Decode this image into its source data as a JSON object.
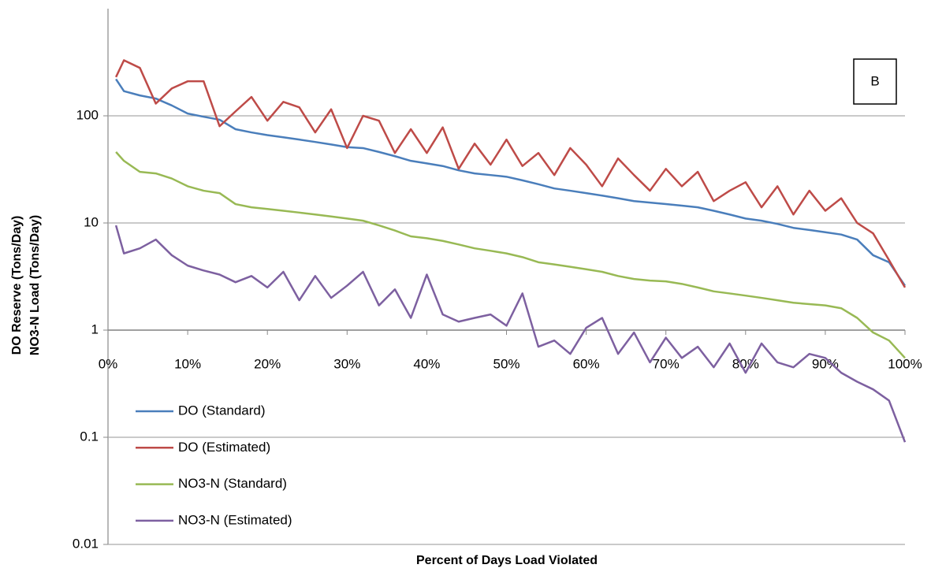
{
  "chart_data": {
    "type": "line",
    "annotation": "B",
    "xlabel": "Percent of Days Load Violated",
    "ylabel": [
      "DO Reserve (Tons/Day)",
      "NO3-N Load (Tons/Day)"
    ],
    "x": [
      1,
      2,
      4,
      6,
      8,
      10,
      12,
      14,
      16,
      18,
      20,
      22,
      24,
      26,
      28,
      30,
      32,
      34,
      36,
      38,
      40,
      42,
      44,
      46,
      48,
      50,
      52,
      54,
      56,
      58,
      60,
      62,
      64,
      66,
      68,
      70,
      72,
      74,
      76,
      78,
      80,
      82,
      84,
      86,
      88,
      90,
      92,
      94,
      96,
      98,
      100
    ],
    "series": [
      {
        "name": "DO (Standard)",
        "color": "#4a7ebb",
        "values": [
          220,
          170,
          155,
          145,
          125,
          105,
          98,
          92,
          75,
          70,
          66,
          63,
          60,
          57,
          54,
          51,
          50,
          46,
          42,
          38,
          36,
          34,
          31,
          29,
          28,
          27,
          25,
          23,
          21,
          20,
          19,
          18,
          17,
          16,
          15.5,
          15,
          14.5,
          14,
          13,
          12,
          11,
          10.5,
          9.8,
          9,
          8.6,
          8.2,
          7.8,
          7,
          5,
          4.3,
          2.6
        ]
      },
      {
        "name": "DO (Estimated)",
        "color": "#be4b48",
        "values": [
          230,
          330,
          280,
          130,
          180,
          210,
          210,
          80,
          110,
          150,
          90,
          135,
          120,
          70,
          115,
          50,
          100,
          90,
          45,
          75,
          45,
          78,
          32,
          55,
          35,
          60,
          34,
          45,
          28,
          50,
          35,
          22,
          40,
          28,
          20,
          32,
          22,
          30,
          16,
          20,
          24,
          14,
          22,
          12,
          20,
          13,
          17,
          10,
          8,
          4.5,
          2.5
        ]
      },
      {
        "name": "NO3-N (Standard)",
        "color": "#98b954",
        "values": [
          46,
          38,
          30,
          29,
          26,
          22,
          20,
          19,
          15,
          14,
          13.5,
          13,
          12.5,
          12,
          11.5,
          11,
          10.5,
          9.5,
          8.5,
          7.5,
          7.2,
          6.8,
          6.3,
          5.8,
          5.5,
          5.2,
          4.8,
          4.3,
          4.1,
          3.9,
          3.7,
          3.5,
          3.2,
          3.0,
          2.9,
          2.85,
          2.7,
          2.5,
          2.3,
          2.2,
          2.1,
          2.0,
          1.9,
          1.8,
          1.75,
          1.7,
          1.6,
          1.3,
          0.95,
          0.8,
          0.55
        ]
      },
      {
        "name": "NO3-N (Estimated)",
        "color": "#7d60a0",
        "values": [
          9.5,
          5.2,
          5.8,
          7,
          5,
          4,
          3.6,
          3.3,
          2.8,
          3.2,
          2.5,
          3.5,
          1.9,
          3.2,
          2.0,
          2.6,
          3.5,
          1.7,
          2.4,
          1.3,
          3.3,
          1.4,
          1.2,
          1.3,
          1.4,
          1.1,
          2.2,
          0.7,
          0.8,
          0.6,
          1.05,
          1.3,
          0.6,
          0.95,
          0.5,
          0.85,
          0.55,
          0.7,
          0.45,
          0.75,
          0.4,
          0.75,
          0.5,
          0.45,
          0.6,
          0.55,
          0.4,
          0.33,
          0.28,
          0.22,
          0.09
        ]
      }
    ],
    "xlim": [
      0,
      100
    ],
    "xticks": [
      {
        "value": 0,
        "label": "0%"
      },
      {
        "value": 10,
        "label": "10%"
      },
      {
        "value": 20,
        "label": "20%"
      },
      {
        "value": 30,
        "label": "30%"
      },
      {
        "value": 40,
        "label": "40%"
      },
      {
        "value": 50,
        "label": "50%"
      },
      {
        "value": 60,
        "label": "60%"
      },
      {
        "value": 70,
        "label": "70%"
      },
      {
        "value": 80,
        "label": "80%"
      },
      {
        "value": 90,
        "label": "90%"
      },
      {
        "value": 100,
        "label": "100%"
      }
    ],
    "ylim": [
      0.01,
      1000
    ],
    "yticks": [
      0.01,
      0.1,
      1,
      10,
      100
    ],
    "ylog": true,
    "xaxis_crosses": 1,
    "grid": true,
    "legend": "lower left"
  }
}
